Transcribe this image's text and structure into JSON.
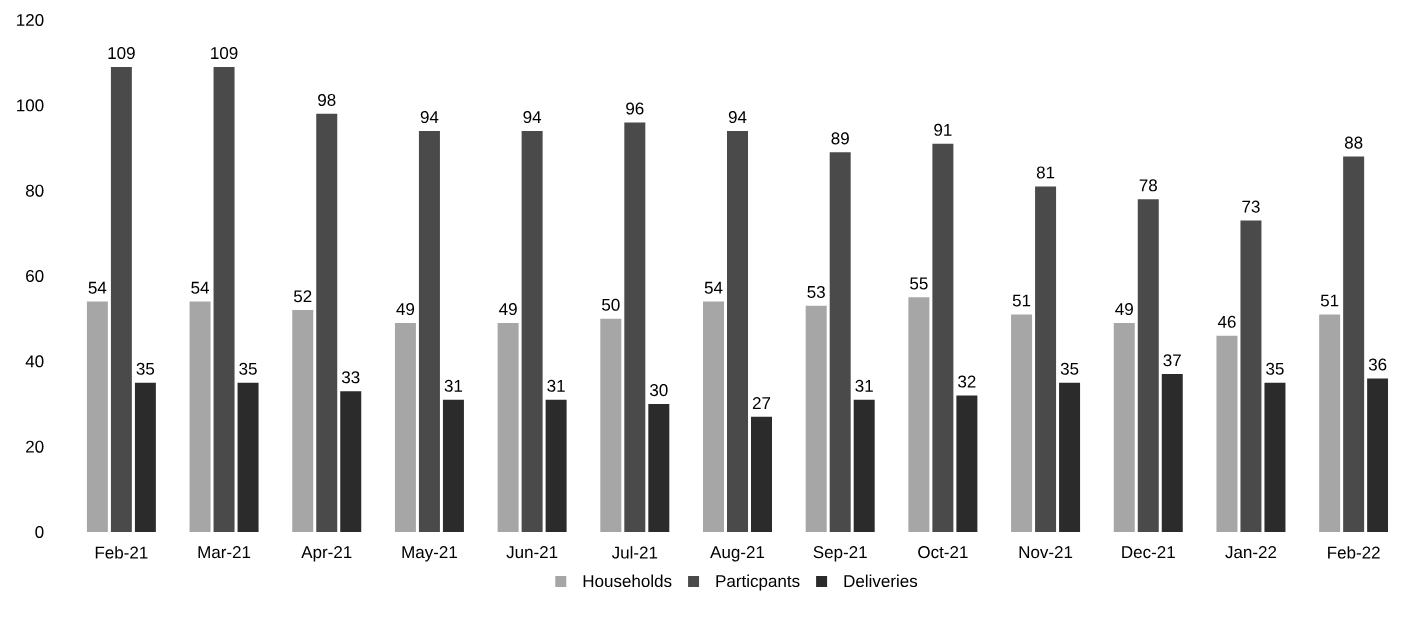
{
  "chart_data": {
    "type": "bar",
    "categories": [
      "Feb-21",
      "Mar-21",
      "Apr-21",
      "May-21",
      "Jun-21",
      "Jul-21",
      "Aug-21",
      "Sep-21",
      "Oct-21",
      "Nov-21",
      "Dec-21",
      "Jan-22",
      "Feb-22"
    ],
    "series": [
      {
        "name": "Households",
        "color": "#a6a6a6",
        "values": [
          54,
          54,
          52,
          49,
          49,
          50,
          54,
          53,
          55,
          51,
          49,
          46,
          51
        ]
      },
      {
        "name": "Particpants",
        "color": "#4a4a4a",
        "values": [
          109,
          109,
          98,
          94,
          94,
          96,
          94,
          89,
          91,
          81,
          78,
          73,
          88
        ]
      },
      {
        "name": "Deliveries",
        "color": "#2b2b2b",
        "values": [
          35,
          35,
          33,
          31,
          31,
          30,
          27,
          31,
          32,
          35,
          37,
          35,
          36
        ]
      }
    ],
    "ylim": [
      0,
      120
    ],
    "yticks": [
      0,
      20,
      40,
      60,
      80,
      100,
      120
    ],
    "data_labels": true,
    "legend": "bottom",
    "grid": false
  }
}
